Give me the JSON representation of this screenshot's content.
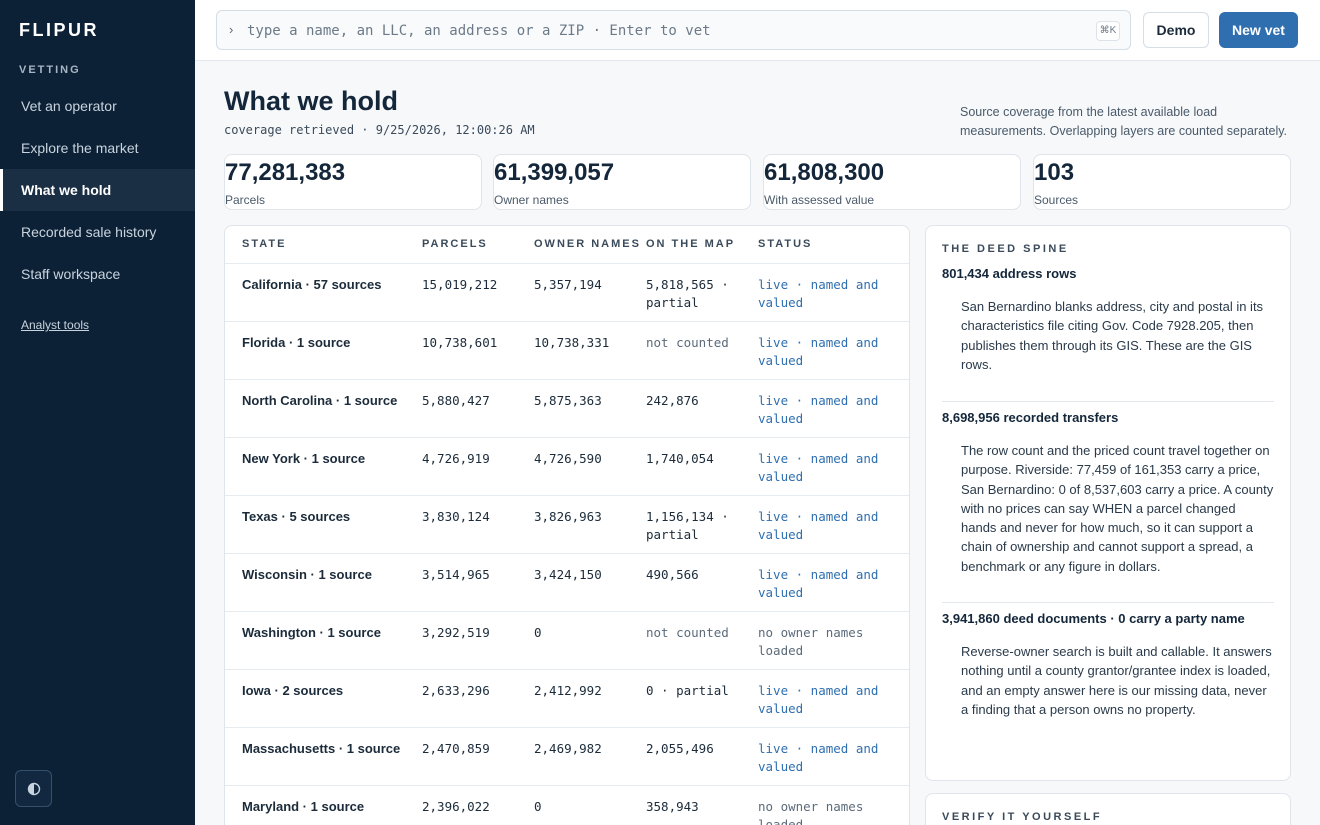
{
  "app": {
    "brand": "FLIPUR"
  },
  "sidebar": {
    "section_label": "VETTING",
    "items": [
      {
        "label": "Vet an operator"
      },
      {
        "label": "Explore the market"
      },
      {
        "label": "What we hold"
      },
      {
        "label": "Recorded sale history"
      },
      {
        "label": "Staff workspace"
      }
    ],
    "active": "What we hold",
    "analyst_link": "Analyst tools"
  },
  "topbar": {
    "search_placeholder": "type a name, an LLC, an address or a ZIP · Enter to vet",
    "shortcut": "⌘K",
    "demo_label": "Demo",
    "new_vet_label": "New vet"
  },
  "page": {
    "title": "What we hold",
    "retrieved": "coverage retrieved · 9/25/2026, 12:00:26 AM",
    "source_note": "Source coverage from the latest available load measurements. Overlapping layers are counted separately."
  },
  "stats": [
    {
      "value": "77,281,383",
      "label": "Parcels"
    },
    {
      "value": "61,399,057",
      "label": "Owner names"
    },
    {
      "value": "61,808,300",
      "label": "With assessed value"
    },
    {
      "value": "103",
      "label": "Sources"
    }
  ],
  "table": {
    "headers": {
      "state": "STATE",
      "parcels": "PARCELS",
      "owner_names": "OWNER NAMES",
      "on_map": "ON THE MAP",
      "status": "STATUS"
    },
    "rows": [
      {
        "state": "California · 57 sources",
        "parcels": "15,019,212",
        "owners": "5,357,194",
        "map": "5,818,565 · partial",
        "status": "live · named and valued"
      },
      {
        "state": "Florida · 1 source",
        "parcels": "10,738,601",
        "owners": "10,738,331",
        "map": "not counted",
        "status": "live · named and valued"
      },
      {
        "state": "North Carolina · 1 source",
        "parcels": "5,880,427",
        "owners": "5,875,363",
        "map": "242,876",
        "status": "live · named and valued"
      },
      {
        "state": "New York · 1 source",
        "parcels": "4,726,919",
        "owners": "4,726,590",
        "map": "1,740,054",
        "status": "live · named and valued"
      },
      {
        "state": "Texas · 5 sources",
        "parcels": "3,830,124",
        "owners": "3,826,963",
        "map": "1,156,134 · partial",
        "status": "live · named and valued"
      },
      {
        "state": "Wisconsin · 1 source",
        "parcels": "3,514,965",
        "owners": "3,424,150",
        "map": "490,566",
        "status": "live · named and valued"
      },
      {
        "state": "Washington · 1 source",
        "parcels": "3,292,519",
        "owners": "0",
        "map": "not counted",
        "status": "no owner names loaded"
      },
      {
        "state": "Iowa · 2 sources",
        "parcels": "2,633,296",
        "owners": "2,412,992",
        "map": "0 · partial",
        "status": "live · named and valued"
      },
      {
        "state": "Massachusetts · 1 source",
        "parcels": "2,470,859",
        "owners": "2,469,982",
        "map": "2,055,496",
        "status": "live · named and valued"
      },
      {
        "state": "Maryland · 1 source",
        "parcels": "2,396,022",
        "owners": "0",
        "map": "358,943",
        "status": "no owner names loaded"
      }
    ]
  },
  "deed_spine": {
    "title": "THE DEED SPINE",
    "blocks": [
      {
        "head": "801,434 address rows",
        "body": "San Bernardino blanks address, city and postal in its characteristics file citing Gov. Code 7928.205, then publishes them through its GIS. These are the GIS rows."
      },
      {
        "head": "8,698,956 recorded transfers",
        "body": "The row count and the priced count travel together on purpose. Riverside: 77,459 of 161,353 carry a price, San Bernardino: 0 of 8,537,603 carry a price. A county with no prices can say WHEN a parcel changed hands and never for how much, so it can support a chain of ownership and cannot support a spread, a benchmark or any figure in dollars."
      },
      {
        "head": "3,941,860 deed documents · 0 carry a party name",
        "body": "Reverse-owner search is built and callable. It answers nothing until a county grantor/grantee index is loaded, and an empty answer here is our missing data, never a finding that a person owns no property."
      }
    ]
  },
  "verify": {
    "title": "VERIFY IT YOURSELF"
  }
}
